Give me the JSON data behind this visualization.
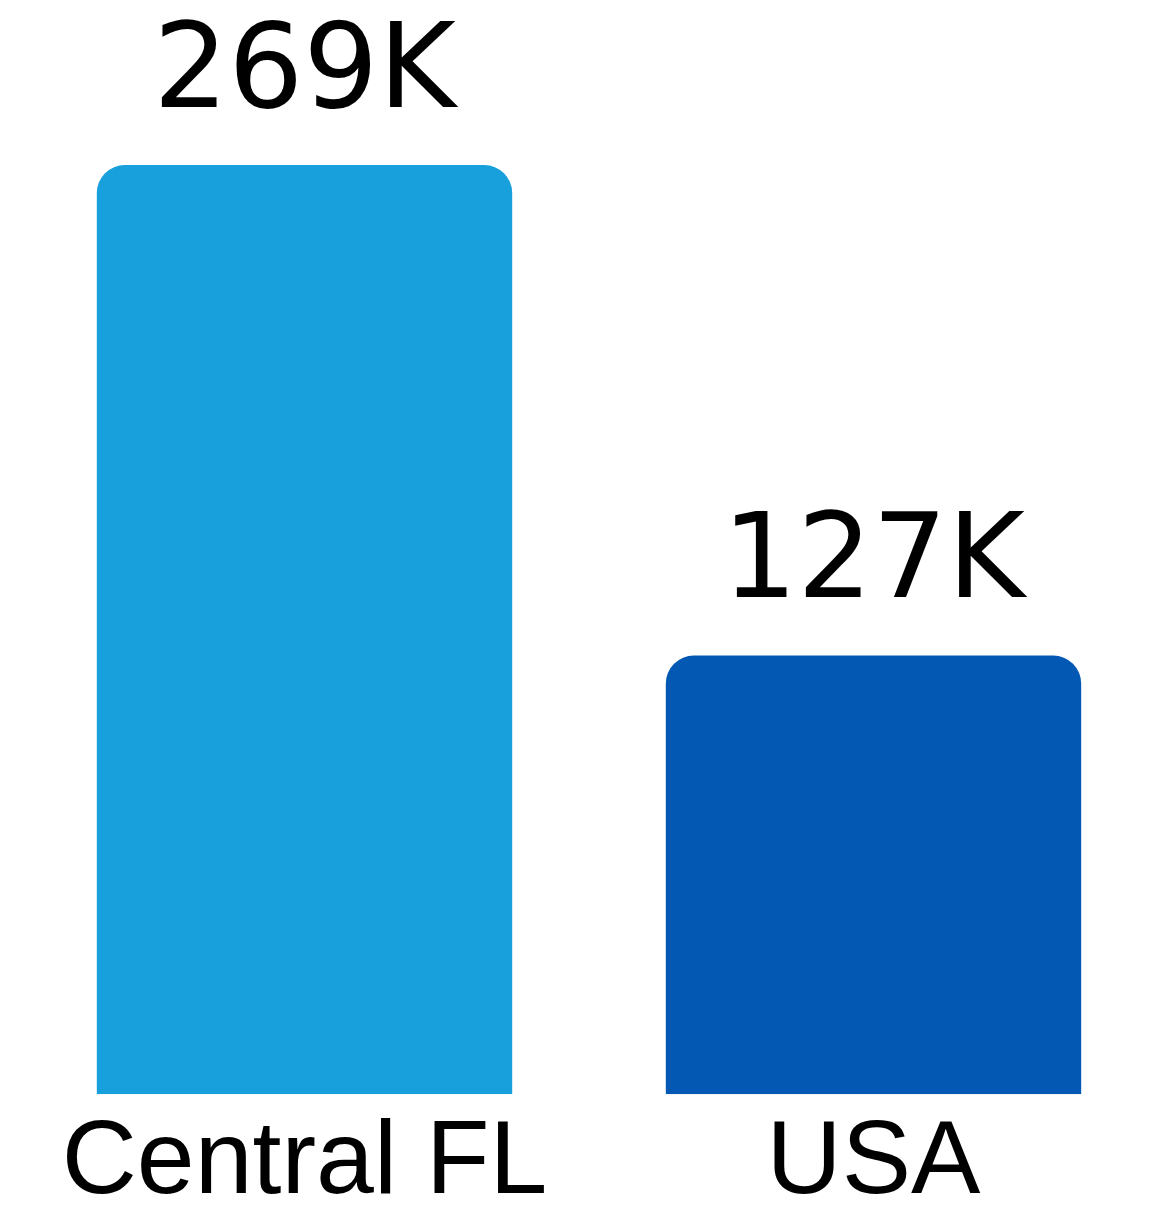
{
  "chart_data": {
    "type": "bar",
    "categories": [
      "Central FL",
      "USA"
    ],
    "values": [
      269000,
      127000
    ],
    "colors": [
      "#17a0dc",
      "#0358b4"
    ],
    "value_labels": [
      "269K",
      "127K"
    ]
  }
}
